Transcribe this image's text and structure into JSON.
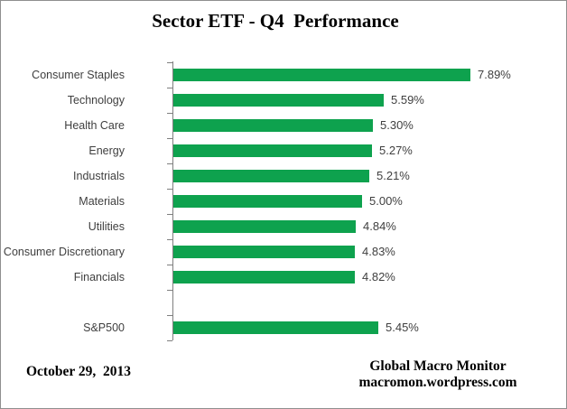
{
  "title": "Sector ETF - Q4  Performance",
  "chart_data": {
    "type": "bar",
    "orientation": "horizontal",
    "title": "Sector ETF - Q4  Performance",
    "categories": [
      "Consumer Staples",
      "Technology",
      "Health Care",
      "Energy",
      "Industrials",
      "Materials",
      "Utilities",
      "Consumer Discretionary",
      "Financials",
      "S&P500"
    ],
    "values": [
      7.89,
      5.59,
      5.3,
      5.27,
      5.21,
      5.0,
      4.84,
      4.83,
      4.82,
      5.45
    ],
    "value_labels": [
      "7.89%",
      "5.59%",
      "5.30%",
      "5.27%",
      "5.21%",
      "5.00%",
      "4.84%",
      "4.83%",
      "4.82%",
      "5.45%"
    ],
    "separator_before_last": true,
    "xlim": [
      0,
      10.5
    ],
    "xlabel": "",
    "ylabel": "",
    "grid": false,
    "legend": false,
    "bar_color": "#0ea24e",
    "axis_color": "#7f7f7f"
  },
  "footer": {
    "date": "October 29,  2013",
    "source_line1": "Global Macro Monitor",
    "source_line2": "macromon.wordpress.com"
  }
}
